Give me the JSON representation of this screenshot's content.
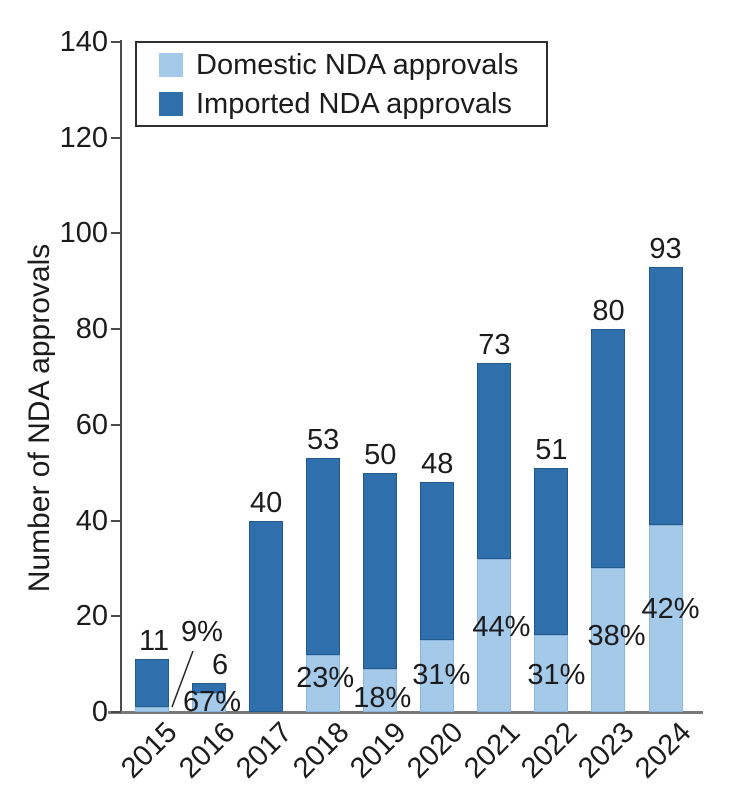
{
  "chart_data": {
    "type": "bar",
    "stacked": true,
    "title": "",
    "ylabel": "Number of NDA approvals",
    "xlabel": "",
    "categories": [
      "2015",
      "2016",
      "2017",
      "2018",
      "2019",
      "2020",
      "2021",
      "2022",
      "2023",
      "2024"
    ],
    "series": [
      {
        "name": "Domestic NDA approvals",
        "color": "#a5c9e8",
        "values": [
          1,
          4,
          0,
          12,
          9,
          15,
          32,
          16,
          30,
          39
        ]
      },
      {
        "name": "Imported NDA approvals",
        "color": "#2e6fac",
        "values": [
          10,
          2,
          40,
          41,
          41,
          33,
          41,
          35,
          50,
          54
        ]
      }
    ],
    "totals": [
      11,
      6,
      40,
      53,
      50,
      48,
      73,
      51,
      80,
      93
    ],
    "percent_labels": [
      "9%",
      "67%",
      "",
      "23%",
      "18%",
      "31%",
      "44%",
      "31%",
      "38%",
      "42%"
    ],
    "yticks": [
      0,
      20,
      40,
      60,
      80,
      100,
      120,
      140
    ],
    "ylim": [
      0,
      140
    ],
    "grid": false,
    "legend_position": "top-left-inside",
    "colors": {
      "text": "#1c1c1e",
      "y_axis": "#4a4a4c",
      "x_axis": "#77787b"
    }
  }
}
